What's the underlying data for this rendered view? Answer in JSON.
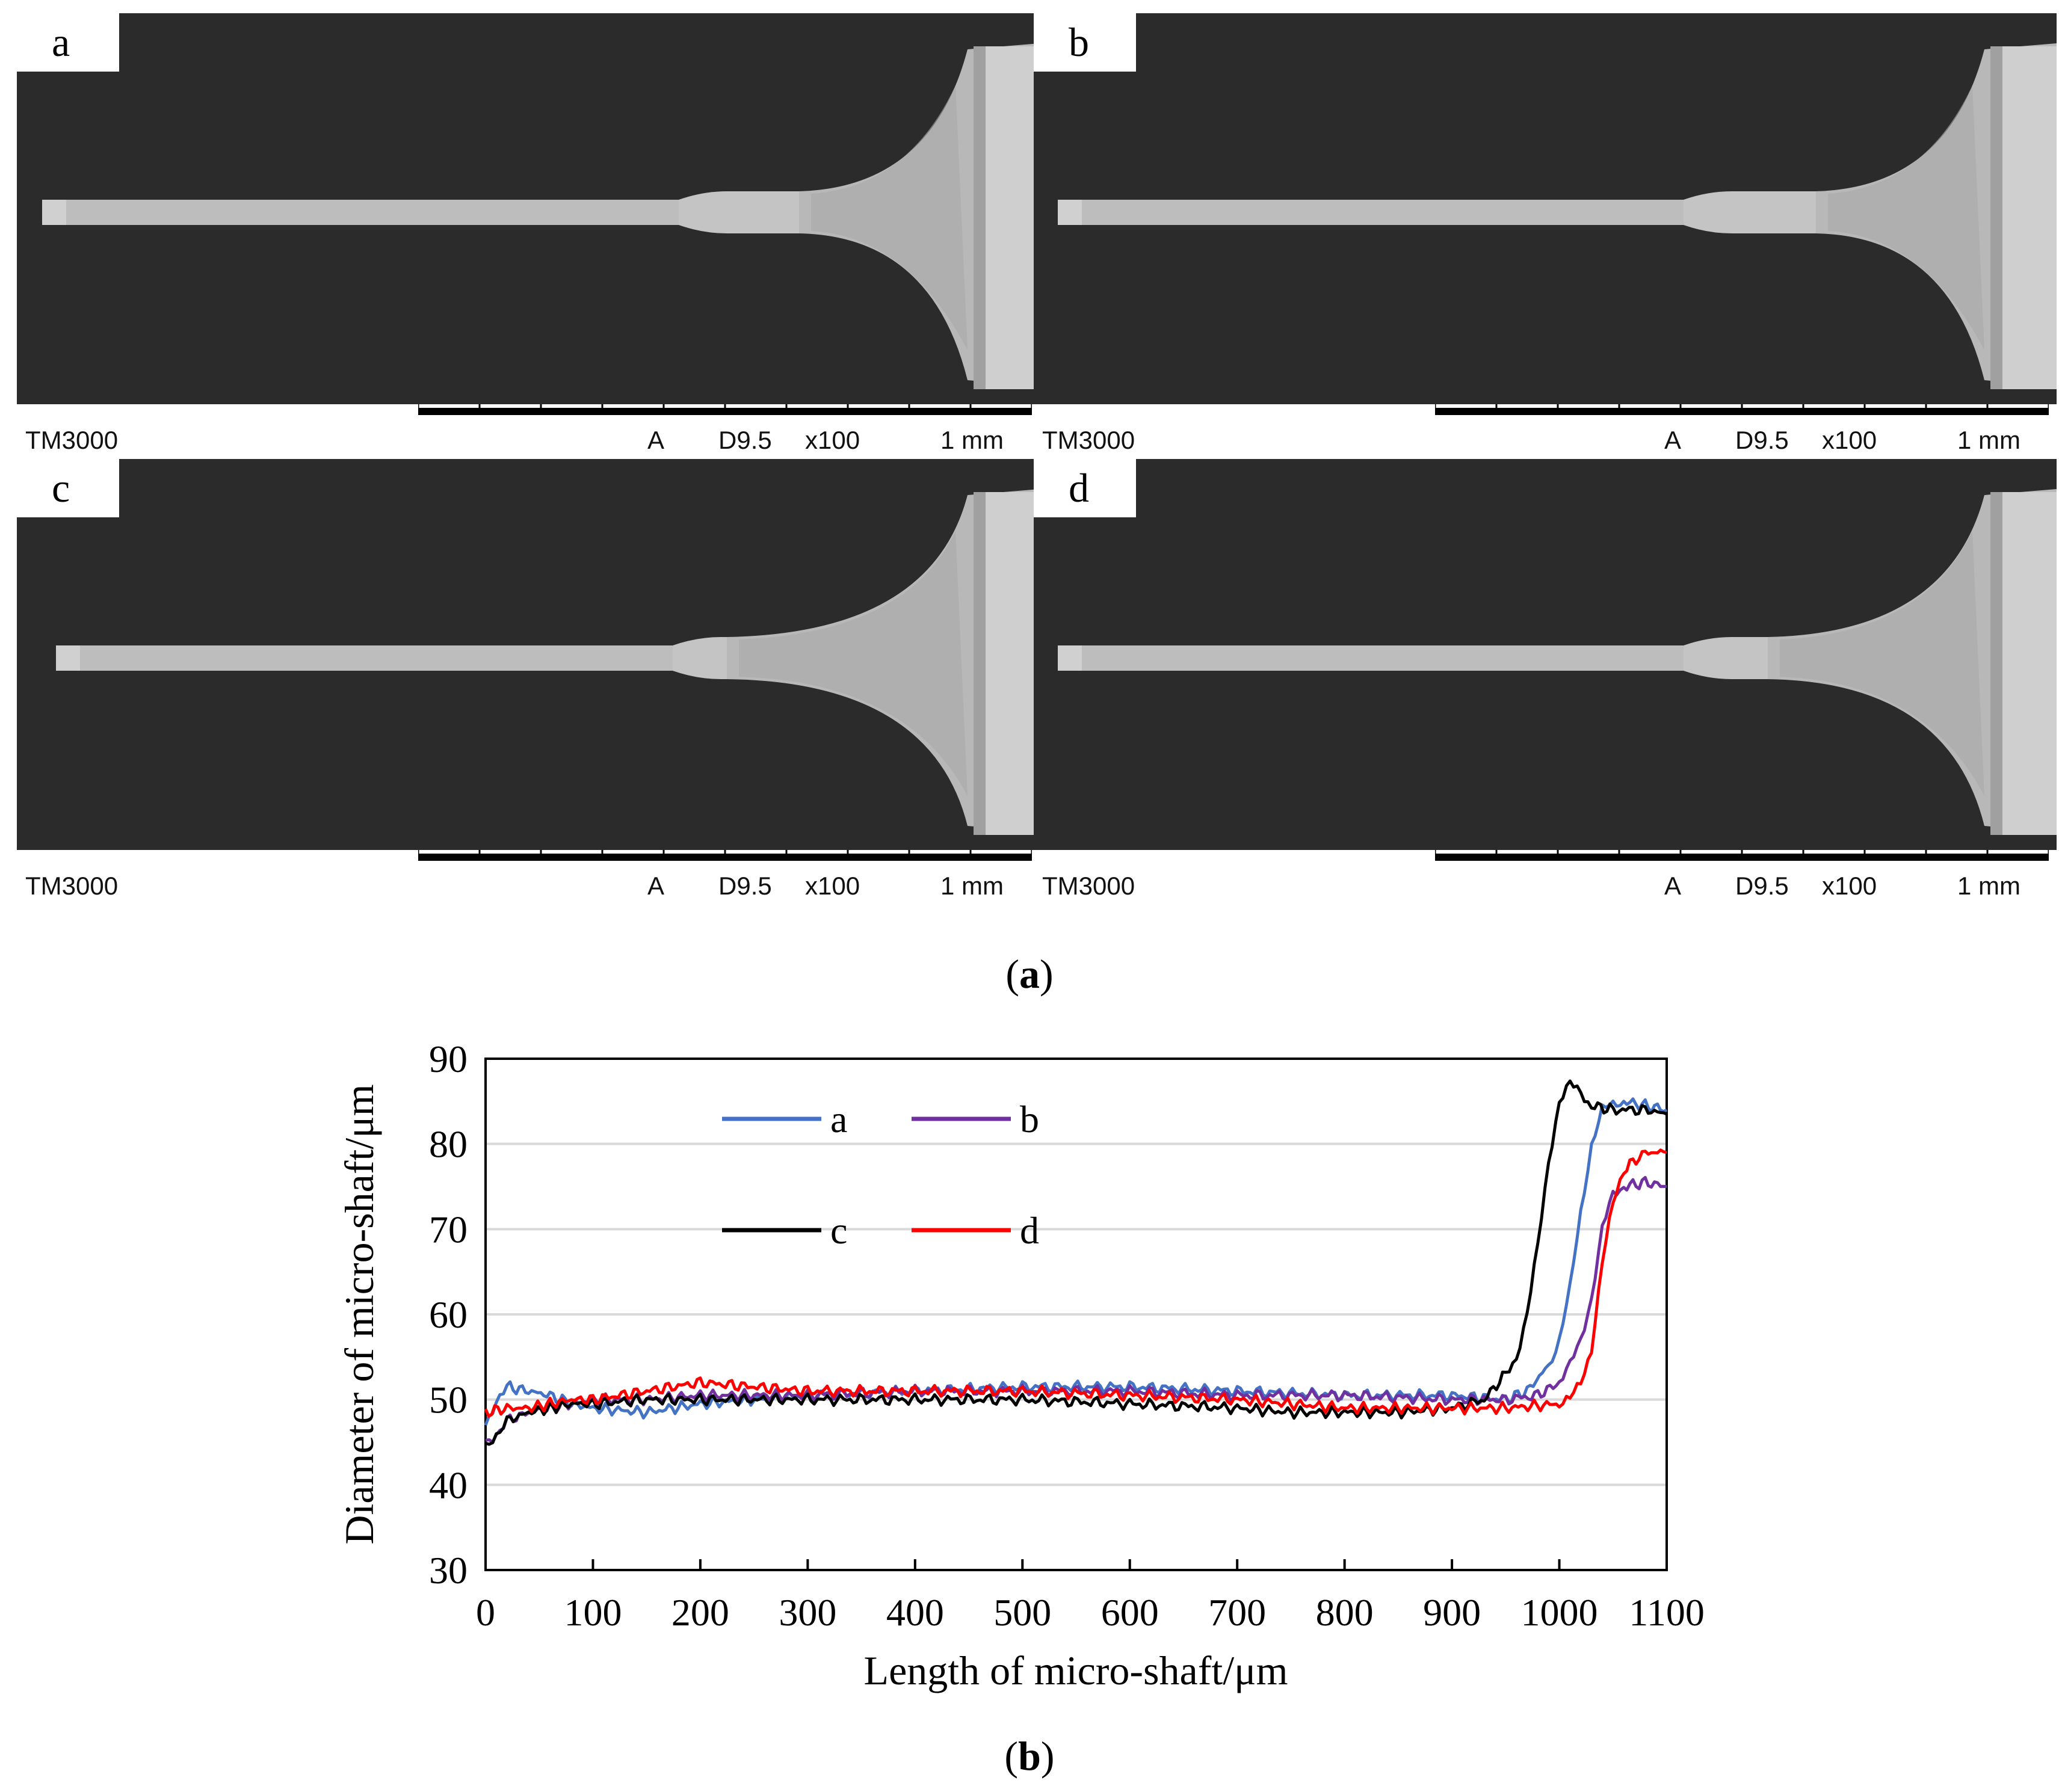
{
  "panels": [
    {
      "label": "a",
      "model": "TM3000",
      "mode": "A",
      "wd": "D9.5",
      "mag": "x100",
      "scale": "1 mm"
    },
    {
      "label": "b",
      "model": "TM3000",
      "mode": "A",
      "wd": "D9.5",
      "mag": "x100",
      "scale": "1 mm"
    },
    {
      "label": "c",
      "model": "TM3000",
      "mode": "A",
      "wd": "D9.5",
      "mag": "x100",
      "scale": "1 mm"
    },
    {
      "label": "d",
      "model": "TM3000",
      "mode": "A",
      "wd": "D9.5",
      "mag": "x100",
      "scale": "1 mm"
    }
  ],
  "caption_a": {
    "open": "(",
    "letter": "a",
    "close": ")"
  },
  "caption_b": {
    "open": "(",
    "letter": "b",
    "close": ")"
  },
  "colors": {
    "a": "#4472c4",
    "b": "#7030a0",
    "c": "#000000",
    "d": "#ff0000",
    "sem_bg": "#2b2b2b",
    "shaft": "#bdbdbd"
  },
  "chart_data": {
    "type": "line",
    "xlabel": "Length of micro-shaft/μm",
    "ylabel": "Diameter of micro-shaft/μm",
    "xlim": [
      0,
      1100
    ],
    "ylim": [
      30,
      90
    ],
    "xticks": [
      0,
      100,
      200,
      300,
      400,
      500,
      600,
      700,
      800,
      900,
      1000,
      1100
    ],
    "yticks": [
      30,
      40,
      50,
      60,
      70,
      80,
      90
    ],
    "grid": "horizontal",
    "legend_position": "top-left",
    "series": [
      {
        "name": "a",
        "color": "#4472c4",
        "x": [
          0,
          10,
          20,
          40,
          60,
          80,
          100,
          150,
          200,
          250,
          300,
          400,
          500,
          600,
          700,
          800,
          900,
          950,
          970,
          990,
          1000,
          1010,
          1020,
          1030,
          1040,
          1050,
          1060,
          1080,
          1100
        ],
        "y": [
          47,
          50,
          51.5,
          51,
          50.5,
          49.5,
          49,
          48.5,
          49.5,
          50,
          50.5,
          51,
          51.5,
          51.5,
          51,
          50.5,
          50.5,
          50,
          51,
          54,
          57,
          63,
          72,
          80,
          84,
          84.5,
          85,
          84.5,
          84
        ]
      },
      {
        "name": "b",
        "color": "#7030a0",
        "x": [
          0,
          10,
          20,
          40,
          60,
          80,
          100,
          150,
          200,
          250,
          300,
          400,
          500,
          600,
          700,
          800,
          900,
          950,
          980,
          1000,
          1010,
          1020,
          1030,
          1040,
          1050,
          1060,
          1080,
          1100
        ],
        "y": [
          45,
          46,
          47.5,
          48.5,
          49,
          49.5,
          50,
          50,
          50.5,
          50.5,
          50.5,
          51,
          51,
          51,
          50.5,
          50.5,
          50,
          50,
          50.5,
          52,
          54,
          57,
          62,
          70,
          74,
          75,
          75.5,
          75
        ]
      },
      {
        "name": "c",
        "color": "#000000",
        "x": [
          0,
          10,
          20,
          40,
          60,
          80,
          100,
          150,
          200,
          250,
          300,
          400,
          500,
          600,
          700,
          750,
          800,
          850,
          900,
          930,
          950,
          960,
          970,
          980,
          990,
          1000,
          1010,
          1020,
          1030,
          1050,
          1080,
          1100
        ],
        "y": [
          44.5,
          46,
          47.5,
          48.5,
          49,
          49.5,
          49.5,
          50,
          50,
          50,
          50,
          50,
          50,
          49.5,
          49,
          48.5,
          48.5,
          48.5,
          49,
          50,
          53,
          55,
          60,
          68,
          78,
          85,
          87,
          86,
          84.5,
          84,
          84,
          83.5
        ]
      },
      {
        "name": "d",
        "color": "#ff0000",
        "x": [
          0,
          20,
          40,
          60,
          80,
          100,
          150,
          200,
          250,
          300,
          400,
          500,
          600,
          700,
          750,
          800,
          850,
          900,
          950,
          1000,
          1010,
          1020,
          1030,
          1040,
          1050,
          1060,
          1080,
          1100
        ],
        "y": [
          48.5,
          49,
          49,
          49.5,
          50,
          50,
          51,
          52,
          51.5,
          51,
          51,
          51,
          50.5,
          50,
          49.5,
          49,
          49,
          49,
          49,
          49.5,
          50,
          52,
          56,
          66,
          73,
          77,
          79,
          79
        ]
      }
    ]
  }
}
